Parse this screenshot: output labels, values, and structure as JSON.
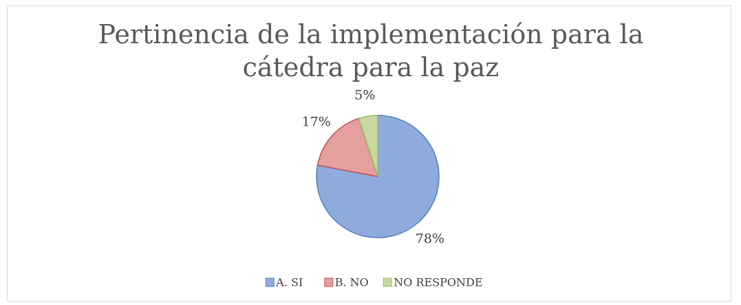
{
  "chart_data": {
    "type": "pie",
    "title": "Pertinencia de la implementación para la cátedra para la paz",
    "categories": [
      "A. SI",
      "B. NO",
      "NO RESPONDE"
    ],
    "values": [
      78,
      17,
      5
    ],
    "value_labels": [
      "78%",
      "17%",
      "5%"
    ],
    "colors": [
      "#8faadc",
      "#e3a09e",
      "#c5d9a0"
    ],
    "edge_colors": [
      "#4f81bd",
      "#c0504d",
      "#9bbb59"
    ],
    "legend": "bottom"
  }
}
